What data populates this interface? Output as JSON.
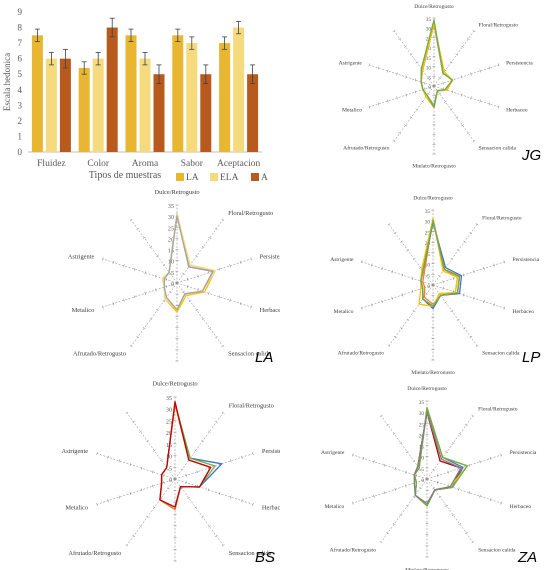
{
  "chart_data": [
    {
      "type": "bar",
      "ylabel": "Escala hedonica",
      "xlabel": "Tipos de muestras",
      "ylim": [
        0,
        9
      ],
      "yticks": [
        "0",
        "1",
        "2",
        "3",
        "4",
        "5",
        "6",
        "7",
        "8",
        "9"
      ],
      "categories": [
        "Fluidez",
        "Color",
        "Aroma",
        "Sabor",
        "Aceptacion"
      ],
      "series": [
        {
          "name": "LA",
          "color": "#E8B630",
          "values": [
            7.5,
            5.4,
            7.5,
            7.5,
            7.0
          ],
          "errors": [
            0.4,
            0.4,
            0.4,
            0.4,
            0.4
          ]
        },
        {
          "name": "ELA",
          "color": "#F6DB7E",
          "values": [
            6.0,
            6.0,
            6.0,
            7.0,
            8.0
          ],
          "errors": [
            0.4,
            0.4,
            0.4,
            0.4,
            0.4
          ]
        },
        {
          "name": "A",
          "color": "#B85A1E",
          "values": [
            6.0,
            8.0,
            5.0,
            5.0,
            5.0
          ],
          "errors": [
            0.6,
            0.6,
            0.6,
            0.6,
            0.6
          ]
        }
      ],
      "legend_position": "bottom-right",
      "grid": false
    },
    {
      "type": "radar",
      "title": "JG",
      "axes_ref": "radar_axes",
      "ticks": [
        "0",
        "5",
        "10",
        "15",
        "20",
        "25",
        "30",
        "35"
      ],
      "series": [
        {
          "color": "#4472C4",
          "values": [
            32,
            8,
            10,
            6,
            3,
            10,
            6,
            6,
            7,
            10
          ]
        },
        {
          "color": "#ED7D31",
          "values": [
            32,
            8,
            10,
            7,
            3,
            11,
            6,
            6,
            7,
            11
          ]
        },
        {
          "color": "#A5A5A5",
          "values": [
            33,
            8,
            10,
            6,
            3,
            10,
            6,
            6,
            7,
            10
          ]
        },
        {
          "color": "#FFC000",
          "values": [
            32,
            9,
            10,
            7,
            3,
            11,
            7,
            6,
            7,
            10
          ]
        },
        {
          "color": "#70AD47",
          "values": [
            34,
            8,
            10,
            6,
            3,
            11,
            6,
            6,
            7,
            11
          ]
        }
      ]
    },
    {
      "type": "radar",
      "title": "LA",
      "axes_ref": "radar_axes",
      "ticks": [
        "0",
        "5",
        "10",
        "15",
        "20",
        "25",
        "30",
        "35"
      ],
      "series": [
        {
          "color": "#4472C4",
          "values": [
            31,
            9,
            17,
            12,
            6,
            12,
            9,
            6,
            6,
            6
          ]
        },
        {
          "color": "#FFC000",
          "values": [
            30,
            10,
            18,
            13,
            7,
            13,
            9,
            6,
            6,
            6
          ]
        },
        {
          "color": "#F6DB7E",
          "values": [
            31,
            10,
            18,
            12,
            6,
            12,
            9,
            6,
            7,
            6
          ]
        },
        {
          "color": "#A5A5A5",
          "values": [
            30,
            9,
            17,
            12,
            6,
            12,
            8,
            6,
            6,
            6
          ]
        }
      ]
    },
    {
      "type": "radar",
      "title": "LP",
      "axes_ref": "radar_axes",
      "ticks": [
        "0",
        "5",
        "10",
        "15",
        "20",
        "25",
        "30",
        "35"
      ],
      "series": [
        {
          "color": "#C00000",
          "values": [
            30,
            9,
            13,
            12,
            6,
            10,
            8,
            5,
            6,
            8
          ]
        },
        {
          "color": "#ED7D31",
          "values": [
            31,
            9,
            12,
            11,
            6,
            9,
            7,
            4,
            5,
            7
          ]
        },
        {
          "color": "#4472C4",
          "values": [
            29,
            10,
            14,
            13,
            6,
            11,
            8,
            5,
            6,
            8
          ]
        },
        {
          "color": "#FFC000",
          "values": [
            31,
            8,
            12,
            11,
            5,
            10,
            11,
            6,
            6,
            9
          ]
        },
        {
          "color": "#70AD47",
          "values": [
            30,
            9,
            13,
            12,
            6,
            10,
            8,
            5,
            6,
            8
          ]
        }
      ]
    },
    {
      "type": "radar",
      "title": "BS",
      "axes_ref": "radar_axes",
      "ticks": [
        "0",
        "5",
        "10",
        "15",
        "20",
        "25",
        "30",
        "35"
      ],
      "series": [
        {
          "color": "#4472C4",
          "values": [
            32,
            11,
            21,
            11,
            4,
            13,
            11,
            6,
            6,
            6
          ]
        },
        {
          "color": "#70AD47",
          "values": [
            32,
            11,
            18,
            11,
            4,
            13,
            11,
            6,
            6,
            6
          ]
        },
        {
          "color": "#ED7D31",
          "values": [
            32,
            10,
            16,
            11,
            4,
            13,
            11,
            6,
            6,
            6
          ]
        },
        {
          "color": "#C00000",
          "values": [
            33,
            10,
            16,
            11,
            4,
            12,
            11,
            6,
            6,
            6
          ]
        }
      ]
    },
    {
      "type": "radar",
      "title": "ZA",
      "axes_ref": "radar_axes",
      "ticks": [
        "0",
        "5",
        "10",
        "15",
        "20",
        "25",
        "30",
        "35"
      ],
      "series": [
        {
          "color": "#C00000",
          "values": [
            30,
            10,
            16,
            12,
            6,
            12,
            9,
            5,
            6,
            7
          ]
        },
        {
          "color": "#4472C4",
          "values": [
            31,
            12,
            17,
            12,
            6,
            12,
            9,
            5,
            6,
            6
          ]
        },
        {
          "color": "#FFC000",
          "values": [
            32,
            12,
            19,
            11,
            6,
            12,
            9,
            5,
            6,
            6
          ]
        },
        {
          "color": "#70AD47",
          "values": [
            32,
            12,
            19,
            12,
            6,
            12,
            9,
            5,
            6,
            6
          ]
        },
        {
          "color": "#7F7F7F",
          "values": [
            30,
            11,
            16,
            11,
            6,
            11,
            9,
            6,
            6,
            7
          ]
        }
      ]
    }
  ],
  "radar_axes": [
    "Dulce/Retrogusto",
    "Floral/Retrogusto",
    "Persistencia",
    "Herbaceo",
    "Sensacion calida",
    "Mielato/Retrogusto",
    "Afrutado/Retrogusto",
    "Metalico",
    "Astrigente",
    ""
  ]
}
